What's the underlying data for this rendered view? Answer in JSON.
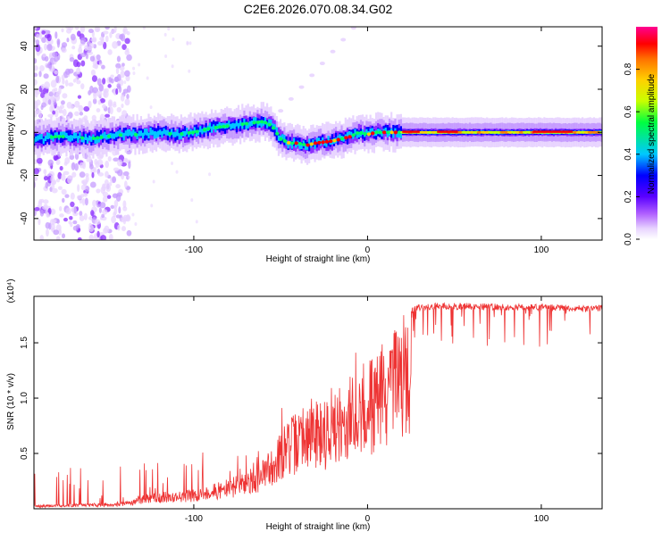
{
  "title": "C2E6.2026.070.08.34.G02",
  "chart_data": [
    {
      "type": "heatmap",
      "xlabel": "Height of straight line (km)",
      "ylabel": "Frequency (Hz)",
      "xlim": [
        -192,
        135
      ],
      "ylim": [
        -50,
        49
      ],
      "xticks": [
        -100,
        0,
        100
      ],
      "yticks": [
        -40,
        -20,
        0,
        20,
        40
      ],
      "ridge": [
        [
          -190,
          -3
        ],
        [
          -180,
          -2
        ],
        [
          -170,
          -2
        ],
        [
          -160,
          -3
        ],
        [
          -150,
          -2
        ],
        [
          -140,
          -1
        ],
        [
          -130,
          -1
        ],
        [
          -120,
          0
        ],
        [
          -110,
          -1
        ],
        [
          -100,
          0
        ],
        [
          -90,
          2
        ],
        [
          -80,
          3
        ],
        [
          -70,
          4
        ],
        [
          -60,
          5
        ],
        [
          -55,
          3
        ],
        [
          -50,
          -3
        ],
        [
          -45,
          -5
        ],
        [
          -40,
          -5
        ],
        [
          -35,
          -6
        ],
        [
          -30,
          -5
        ],
        [
          -20,
          -4
        ],
        [
          -10,
          -2
        ],
        [
          -5,
          0
        ],
        [
          0,
          -1
        ],
        [
          5,
          0
        ],
        [
          10,
          0
        ],
        [
          20,
          0
        ],
        [
          30,
          0
        ],
        [
          50,
          0
        ],
        [
          80,
          0
        ],
        [
          100,
          0
        ],
        [
          135,
          0
        ]
      ],
      "colorbar": {
        "label": "Normalized spectral amplitude",
        "range": [
          0,
          1
        ],
        "ticks": [
          0.0,
          0.2,
          0.4,
          0.6,
          0.8
        ],
        "tick_labels": [
          "0.0",
          "0.2",
          "0.4",
          "0.6",
          "0.8"
        ]
      },
      "colors": [
        "#ffffff",
        "#e8d4ff",
        "#c69cff",
        "#8b2dff",
        "#0000ff",
        "#00c8ff",
        "#00ff60",
        "#c8ff00",
        "#ffd000",
        "#ff8000",
        "#ff0000",
        "#ff0090"
      ]
    },
    {
      "type": "line",
      "xlabel": "Height of straight line (km)",
      "ylabel": "SNR (10 * v/v)",
      "scale_label": "(x10⁴)",
      "xlim": [
        -192,
        135
      ],
      "ylim": [
        0,
        1.92
      ],
      "xticks": [
        -100,
        0,
        100
      ],
      "yticks": [
        0.5,
        1.0,
        1.5
      ],
      "ytick_labels": [
        "0.5",
        "1.0",
        "1.5"
      ],
      "color": "#ee3333",
      "envelope": [
        [
          -192,
          0.03
        ],
        [
          -180,
          0.04
        ],
        [
          -160,
          0.05
        ],
        [
          -140,
          0.06
        ],
        [
          -130,
          0.12
        ],
        [
          -120,
          0.15
        ],
        [
          -110,
          0.16
        ],
        [
          -100,
          0.18
        ],
        [
          -90,
          0.22
        ],
        [
          -80,
          0.27
        ],
        [
          -70,
          0.33
        ],
        [
          -60,
          0.45
        ],
        [
          -55,
          0.58
        ],
        [
          -50,
          0.72
        ],
        [
          -45,
          0.82
        ],
        [
          -40,
          0.9
        ],
        [
          -35,
          0.95
        ],
        [
          -30,
          1.05
        ],
        [
          -25,
          1.0
        ],
        [
          -20,
          1.05
        ],
        [
          -15,
          1.1
        ],
        [
          -10,
          1.2
        ],
        [
          -5,
          1.28
        ],
        [
          0,
          1.35
        ],
        [
          5,
          1.45
        ],
        [
          10,
          1.55
        ],
        [
          15,
          1.6
        ],
        [
          20,
          1.75
        ],
        [
          25,
          1.82
        ],
        [
          30,
          1.85
        ],
        [
          40,
          1.86
        ],
        [
          60,
          1.86
        ],
        [
          80,
          1.85
        ],
        [
          100,
          1.85
        ],
        [
          120,
          1.84
        ],
        [
          135,
          1.84
        ]
      ]
    }
  ]
}
